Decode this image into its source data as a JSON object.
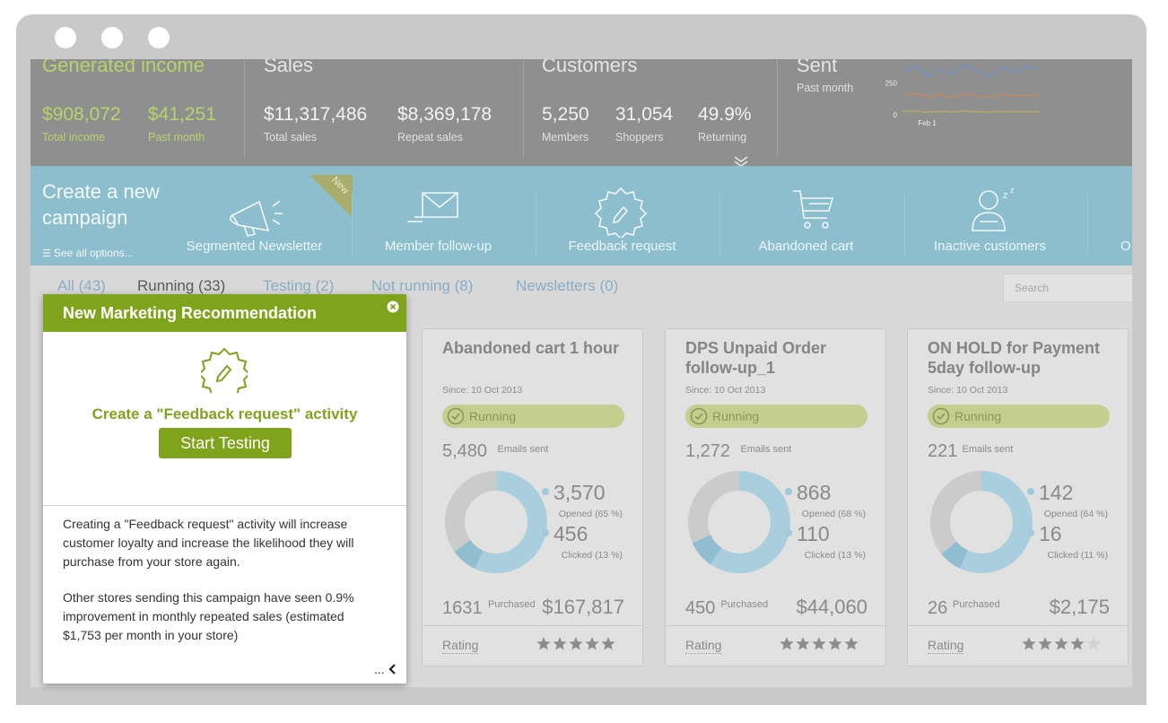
{
  "stats": [
    {
      "title": "Generated income",
      "items": [
        {
          "value": "$908,072",
          "label": "Total income"
        },
        {
          "value": "$41,251",
          "label": "Past month"
        }
      ]
    },
    {
      "title": "Sales",
      "items": [
        {
          "value": "$11,317,486",
          "label": "Total sales"
        },
        {
          "value": "$8,369,178",
          "label": "Repeat sales"
        }
      ]
    },
    {
      "title": "Customers",
      "items": [
        {
          "value": "5,250",
          "label": "Members"
        },
        {
          "value": "31,054",
          "label": "Shoppers"
        },
        {
          "value": "49.9%",
          "label": "Returning"
        }
      ]
    }
  ],
  "sent": {
    "title": "Sent",
    "subtitle": "Past month",
    "chart_data": {
      "type": "line",
      "categories": [
        null,
        null,
        "Feb 1",
        null,
        null,
        null,
        null,
        null,
        null,
        null,
        null,
        null
      ],
      "ylim": [
        0,
        420
      ],
      "yticks": [
        0,
        250
      ],
      "series": [
        {
          "color": "#6f8fc9",
          "values": [
            330,
            380,
            300,
            360,
            320,
            390,
            340,
            300,
            370,
            330,
            380,
            350
          ]
        },
        {
          "color": "#c9875a",
          "values": [
            150,
            170,
            140,
            160,
            130,
            165,
            150,
            140,
            160,
            145,
            155,
            150
          ]
        },
        {
          "color": "#b9ad5a",
          "values": [
            25,
            30,
            20,
            28,
            22,
            30,
            25,
            20,
            28,
            24,
            26,
            22
          ]
        }
      ]
    }
  },
  "campaign": {
    "title": "Create a new campaign",
    "see_all": "See all options...",
    "badge": "New",
    "items": [
      "Segmented Newsletter",
      "Member follow-up",
      "Feedback request",
      "Abandoned cart",
      "Inactive customers",
      "O"
    ]
  },
  "tabs": [
    "All (43)",
    "Running (33)",
    "Testing (2)",
    "Not running (8)",
    "Newsletters (0)"
  ],
  "search_placeholder": "Search",
  "cards": [
    {
      "title": "Abandoned cart 1 hour",
      "since": "Since: 10 Oct 2013",
      "status": "Running",
      "sent": {
        "value": 5480,
        "label": "5,480"
      },
      "sent_caption": "Emails sent",
      "opened": {
        "value": 3570,
        "label": "3,570"
      },
      "opened_caption": "Opened (65 %)",
      "clicked": {
        "value": 456,
        "label": "456"
      },
      "clicked_caption": "Clicked (13 %)",
      "purchased": 1631,
      "purchased_caption": "Purchased",
      "revenue": "$167,817",
      "rating_label": "Rating",
      "rating": 5
    },
    {
      "title": "DPS Unpaid Order follow-up_1",
      "since": "Since: 10 Oct 2013",
      "status": "Running",
      "sent": {
        "value": 1272,
        "label": "1,272"
      },
      "sent_caption": "Emails sent",
      "opened": {
        "value": 868,
        "label": "868"
      },
      "opened_caption": "Opened (68 %)",
      "clicked": {
        "value": 110,
        "label": "110"
      },
      "clicked_caption": "Clicked (13 %)",
      "purchased": 450,
      "purchased_caption": "Purchased",
      "revenue": "$44,060",
      "rating_label": "Rating",
      "rating": 5
    },
    {
      "title": "ON HOLD for Payment 5day follow-up",
      "since": "Since: 10 Oct 2013",
      "status": "Running",
      "sent": {
        "value": 221,
        "label": "221"
      },
      "sent_caption": "Emails sent",
      "opened": {
        "value": 142,
        "label": "142"
      },
      "opened_caption": "Opened (64 %)",
      "clicked": {
        "value": 16,
        "label": "16"
      },
      "clicked_caption": "Clicked (11 %)",
      "purchased": 26,
      "purchased_caption": "Purchased",
      "revenue": "$2,175",
      "rating_label": "Rating",
      "rating": 4
    }
  ],
  "popup": {
    "title": "New Marketing Recommendation",
    "headline": "Create a \"Feedback request\" activity",
    "button": "Start Testing",
    "paragraphs": [
      "Creating a \"Feedback request\" activity will increase customer loyalty and increase the likelihood they will purchase from your store again.",
      "Other stores sending this campaign have seen 0.9% improvement in monthly repeated sales (estimated $1,753 per month in your store)"
    ],
    "footer": "..."
  }
}
